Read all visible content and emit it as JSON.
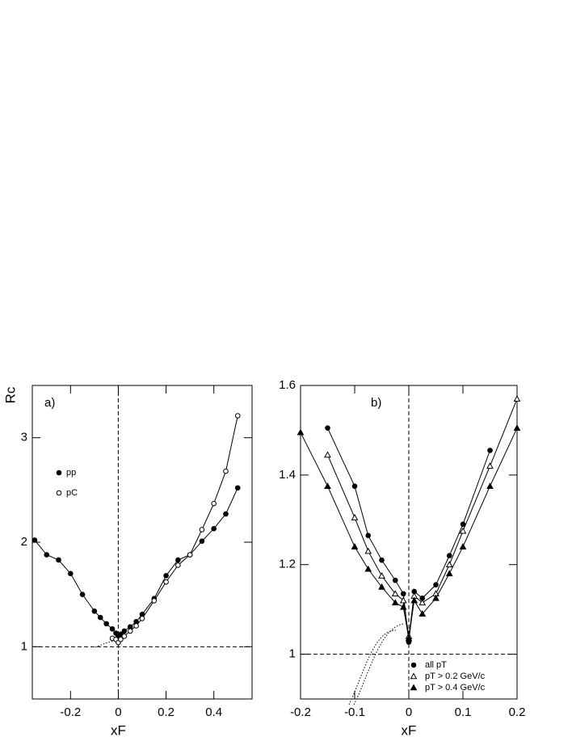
{
  "chart_data": [
    {
      "type": "line",
      "label": "a)",
      "xlabel": "xF",
      "ylabel": "Rc",
      "xlim": [
        -0.36,
        0.56
      ],
      "ylim": [
        0.5,
        3.5
      ],
      "xticks": [
        -0.2,
        0,
        0.2,
        0.4
      ],
      "yticks": [
        1,
        2,
        3
      ],
      "hlines": [
        1
      ],
      "vlines": [
        0
      ],
      "legend": "middle-left",
      "series": [
        {
          "name": "pp",
          "color": "#000000",
          "marker": "circle",
          "x": [
            -0.35,
            -0.3,
            -0.25,
            -0.2,
            -0.15,
            -0.1,
            -0.075,
            -0.05,
            -0.025,
            -0.01,
            0,
            0.01,
            0.025,
            0.05,
            0.075,
            0.1,
            0.15,
            0.2,
            0.25,
            0.3,
            0.35,
            0.4,
            0.45,
            0.5
          ],
          "values": [
            2.02,
            1.88,
            1.83,
            1.7,
            1.5,
            1.34,
            1.28,
            1.22,
            1.17,
            1.13,
            1.1,
            1.12,
            1.15,
            1.19,
            1.24,
            1.31,
            1.46,
            1.68,
            1.83,
            1.88,
            2.01,
            2.13,
            2.27,
            2.52
          ]
        },
        {
          "name": "pC",
          "color": "#000000",
          "marker": "open-circle",
          "x": [
            -0.025,
            -0.01,
            0,
            0.01,
            0.025,
            0.05,
            0.075,
            0.1,
            0.15,
            0.2,
            0.25,
            0.3,
            0.35,
            0.4,
            0.45,
            0.5
          ],
          "values": [
            1.08,
            1.07,
            1.04,
            1.07,
            1.1,
            1.15,
            1.2,
            1.27,
            1.44,
            1.62,
            1.78,
            1.88,
            2.12,
            2.37,
            2.68,
            3.21
          ]
        }
      ]
    },
    {
      "type": "line",
      "label": "b)",
      "xlabel": "xF",
      "xlim": [
        -0.2,
        0.2
      ],
      "ylim": [
        0.9,
        1.6
      ],
      "xticks": [
        -0.2,
        -0.1,
        0,
        0.1,
        0.2
      ],
      "yticks": [
        1,
        1.2,
        1.4,
        1.6
      ],
      "hlines": [
        1
      ],
      "vlines": [
        0
      ],
      "legend": "lower-right",
      "series": [
        {
          "name": "all pT",
          "color": "#000000",
          "marker": "circle",
          "x": [
            -0.15,
            -0.1,
            -0.075,
            -0.05,
            -0.025,
            -0.01,
            0,
            0.01,
            0.025,
            0.05,
            0.075,
            0.1,
            0.15
          ],
          "values": [
            1.505,
            1.375,
            1.265,
            1.21,
            1.165,
            1.135,
            1.027,
            1.14,
            1.125,
            1.155,
            1.22,
            1.29,
            1.455
          ]
        },
        {
          "name": "pT > 0.2 GeV/c",
          "color": "#000000",
          "marker": "open-triangle",
          "x": [
            -0.15,
            -0.1,
            -0.075,
            -0.05,
            -0.025,
            -0.01,
            0,
            0.01,
            0.025,
            0.05,
            0.075,
            0.1,
            0.15,
            0.2
          ],
          "values": [
            1.445,
            1.305,
            1.23,
            1.175,
            1.135,
            1.12,
            1.04,
            1.13,
            1.115,
            1.135,
            1.2,
            1.275,
            1.42,
            1.57
          ]
        },
        {
          "name": "pT > 0.4 GeV/c",
          "color": "#000000",
          "marker": "triangle",
          "x": [
            -0.2,
            -0.15,
            -0.1,
            -0.075,
            -0.05,
            -0.025,
            -0.01,
            0,
            0.01,
            0.025,
            0.05,
            0.075,
            0.1,
            0.15,
            0.2
          ],
          "values": [
            1.495,
            1.375,
            1.24,
            1.19,
            1.15,
            1.115,
            1.105,
            1.035,
            1.12,
            1.09,
            1.125,
            1.18,
            1.24,
            1.375,
            1.505
          ]
        }
      ]
    }
  ]
}
